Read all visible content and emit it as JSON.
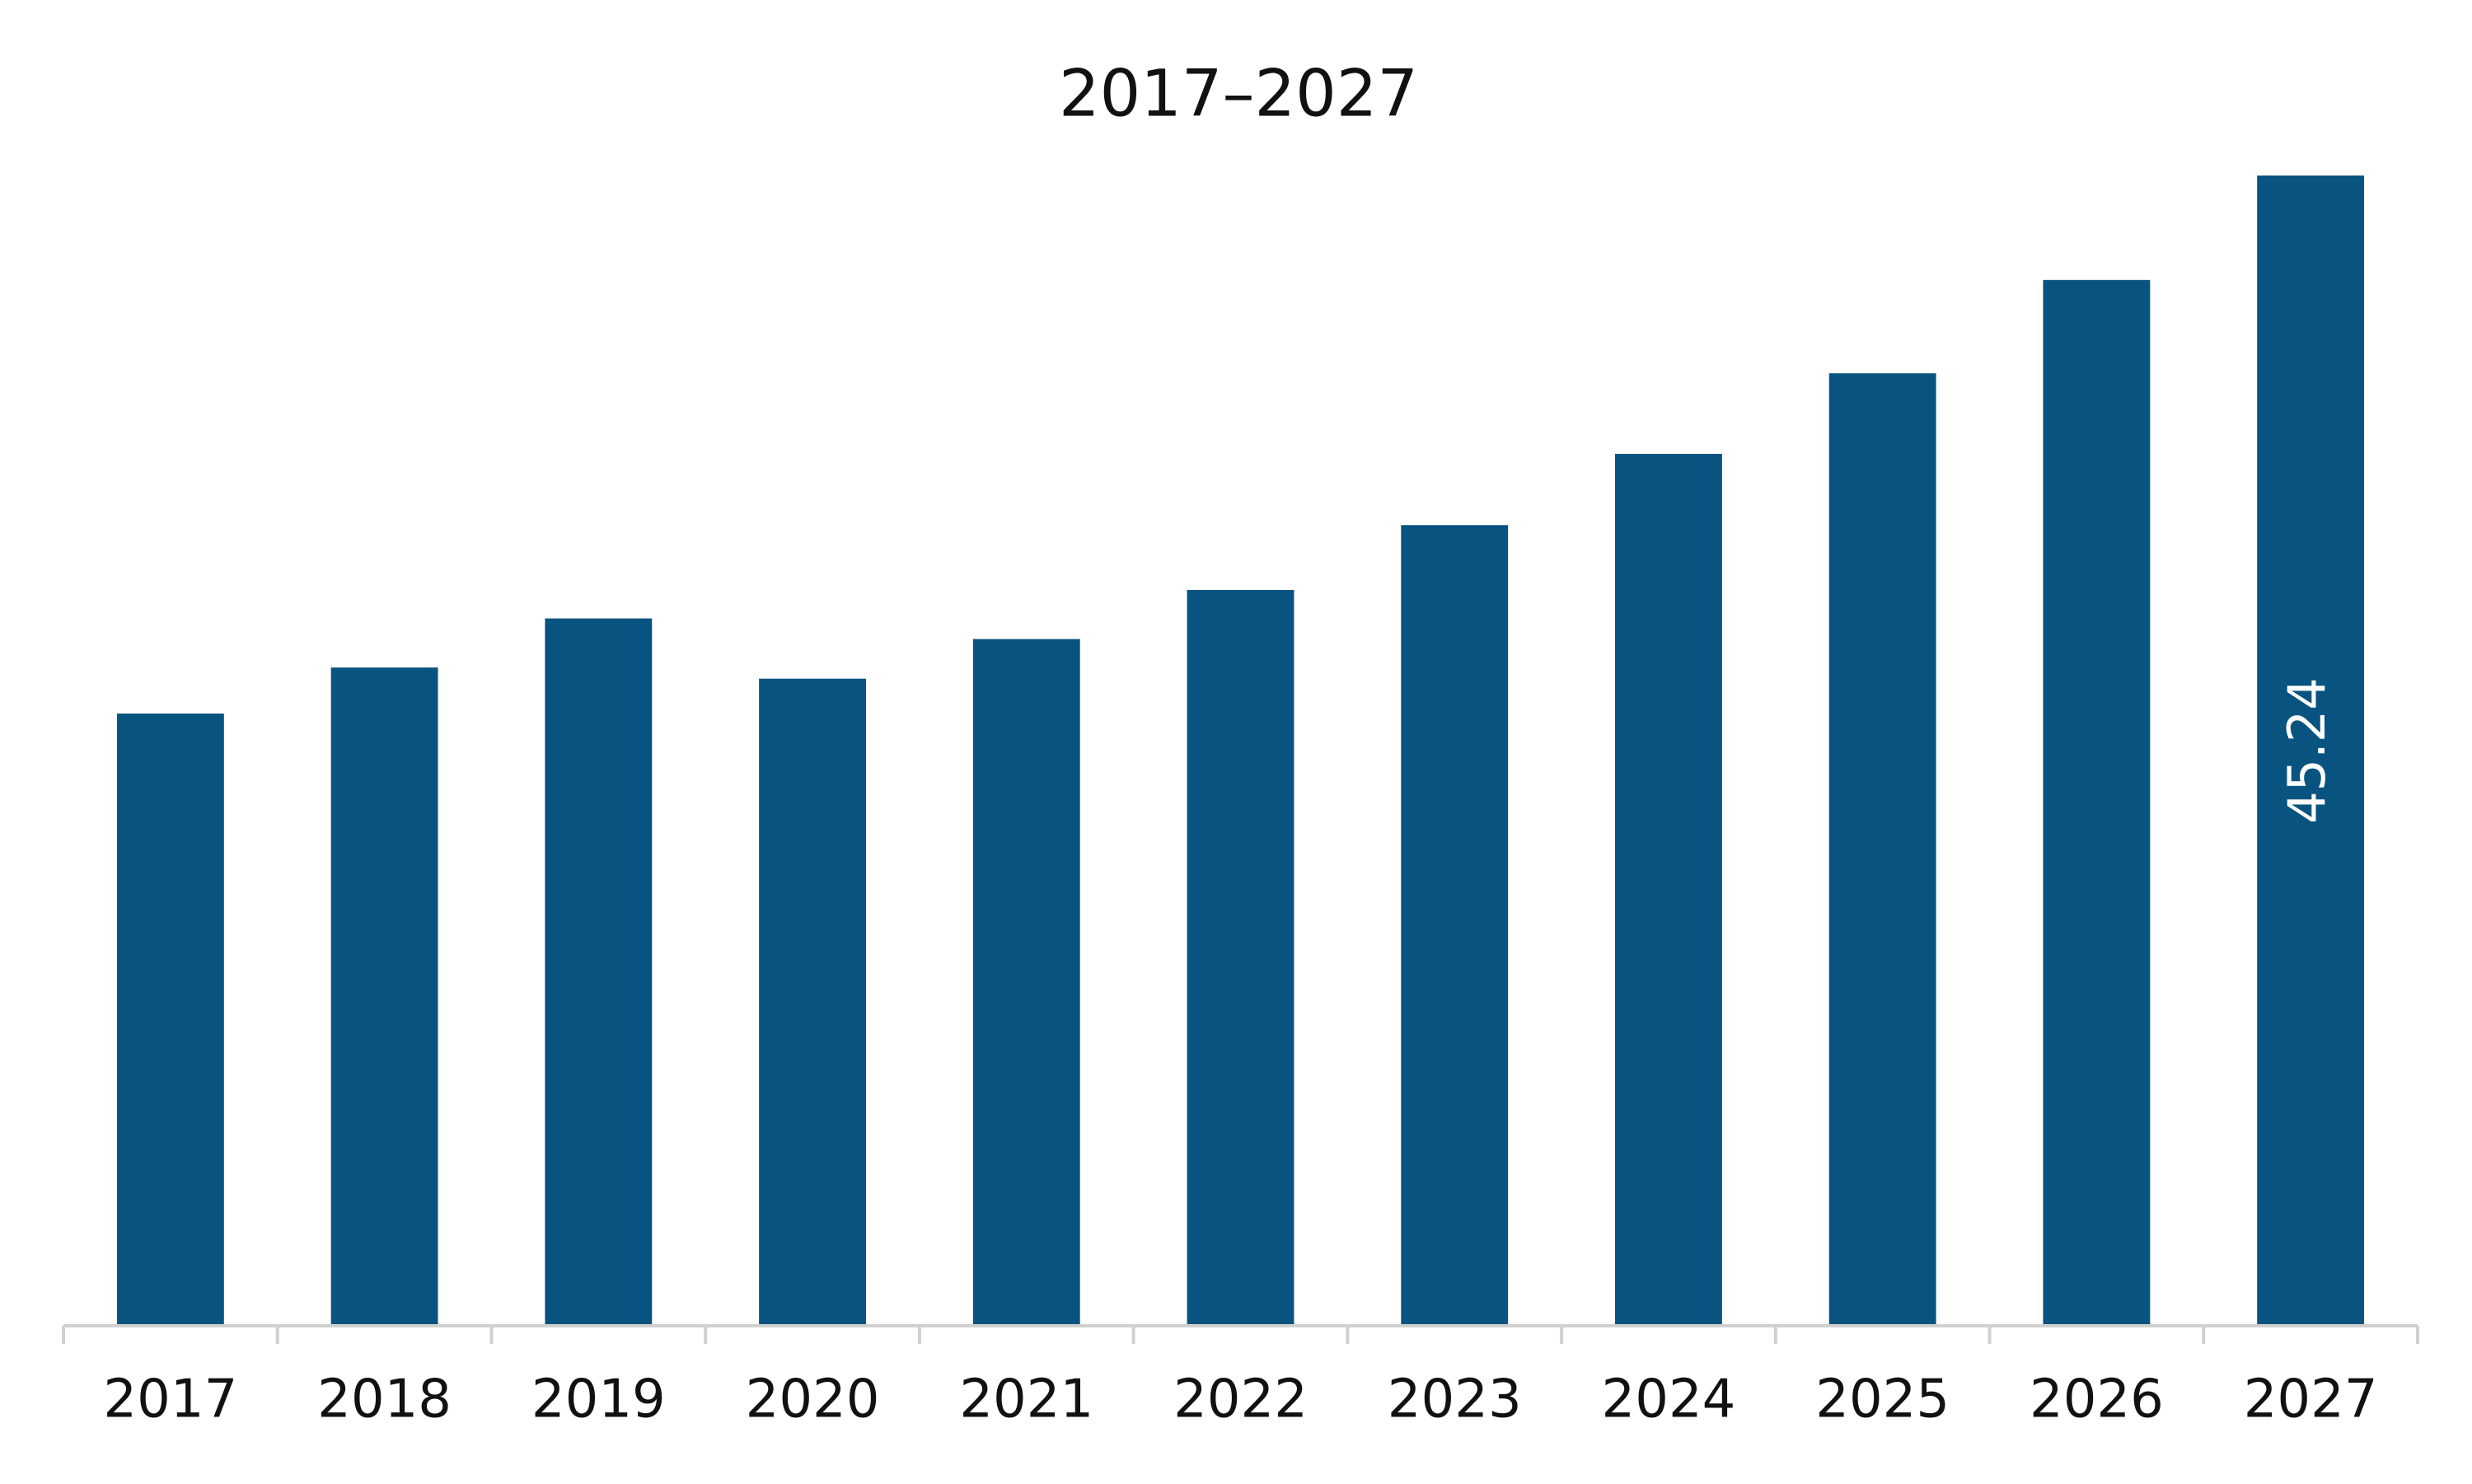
{
  "chart_data": {
    "type": "bar",
    "title": "2017–2027",
    "categories": [
      "2017",
      "2018",
      "2019",
      "2020",
      "2021",
      "2022",
      "2023",
      "2024",
      "2025",
      "2026",
      "2027"
    ],
    "values": [
      24.08,
      25.89,
      27.82,
      25.45,
      27.01,
      28.94,
      31.49,
      34.29,
      37.46,
      41.13,
      45.24
    ],
    "value_labels": [
      null,
      null,
      null,
      null,
      null,
      null,
      null,
      null,
      null,
      null,
      "45.24"
    ],
    "color": "#08537f"
  }
}
